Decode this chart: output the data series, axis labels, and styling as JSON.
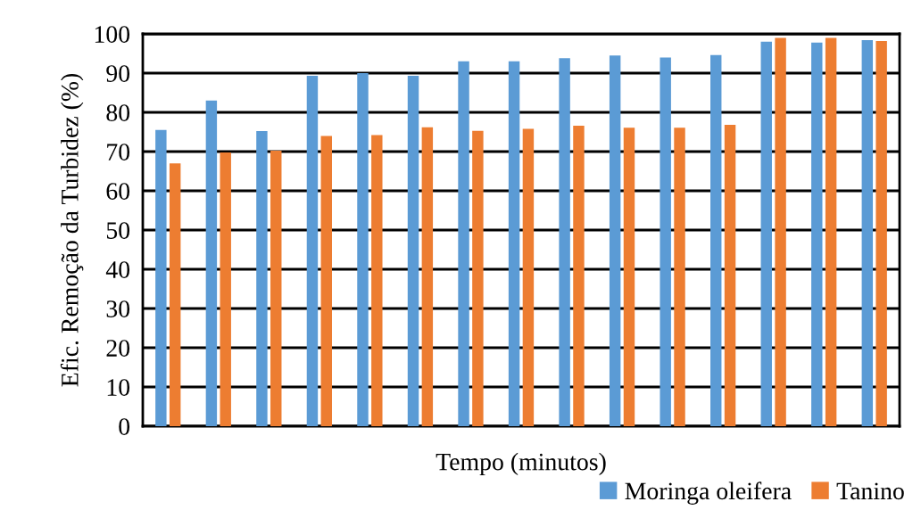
{
  "chart_data": {
    "type": "bar",
    "xlabel": "Tempo (minutos)",
    "ylabel": "Efic. Remoção da Turbidez (%)",
    "categories": [
      null,
      null,
      null,
      null,
      null,
      null,
      null,
      null,
      null,
      null,
      null,
      null,
      null,
      null,
      null
    ],
    "series": [
      {
        "name": "Moringa oleifera",
        "color": "#5b9bd5",
        "values": [
          75.5,
          83,
          75.2,
          89.3,
          90,
          89.3,
          93,
          93,
          93.8,
          94.5,
          94,
          94.6,
          98,
          97.8,
          98.4
        ]
      },
      {
        "name": "Tanino",
        "color": "#ed7d31",
        "values": [
          67,
          69.8,
          70.2,
          74,
          74.2,
          76.2,
          75.3,
          75.8,
          76.6,
          76.1,
          76.1,
          76.8,
          99,
          99,
          98.2
        ]
      }
    ],
    "ylim": [
      0,
      100
    ],
    "yticks": [
      0,
      10,
      20,
      30,
      40,
      50,
      60,
      70,
      80,
      90,
      100
    ],
    "grid": "y",
    "legend": "bottom right"
  }
}
